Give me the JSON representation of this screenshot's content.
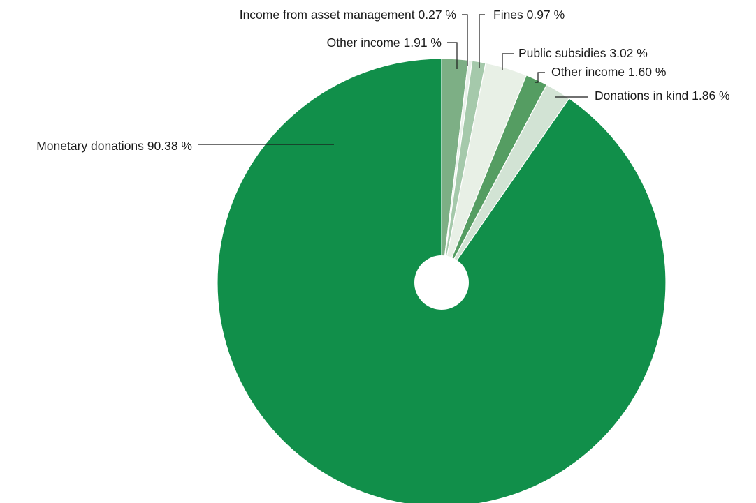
{
  "chart_data": {
    "type": "pie",
    "donut_hole": true,
    "start": "12 o'clock",
    "direction": "clockwise",
    "series": [
      {
        "slices": [
          {
            "label": "Other income",
            "value": 1.91,
            "value_text": "1.91 %",
            "color": "#7daf85"
          },
          {
            "label": "Income from asset management",
            "value": 0.27,
            "value_text": "0.27 %",
            "color": "#e9f1ea"
          },
          {
            "label": "Fines",
            "value": 0.97,
            "value_text": "0.97 %",
            "color": "#a5c9ab"
          },
          {
            "label": "Public subsidies",
            "value": 3.02,
            "value_text": "3.02 %",
            "color": "#e8f0e6"
          },
          {
            "label": "Other income",
            "value": 1.6,
            "value_text": "1.60 %",
            "color": "#559d62"
          },
          {
            "label": "Donations in kind",
            "value": 1.86,
            "value_text": "1.86 %",
            "color": "#d2e3d4"
          },
          {
            "label": "Monetary donations",
            "value": 90.38,
            "value_text": "90.38 %",
            "color": "#118f4a"
          }
        ]
      }
    ]
  }
}
